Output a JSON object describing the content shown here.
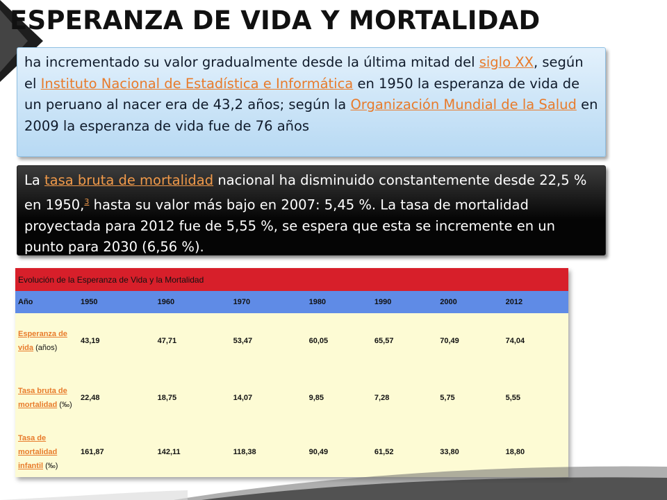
{
  "title": "ESPERANZA DE VIDA Y MORTALIDAD",
  "paragraph1": {
    "t1": "ha incrementado su valor gradualmente desde la última mitad del ",
    "link1": "siglo XX",
    "t2": ", según el ",
    "link2": "Instituto Nacional de Estadística e Informática",
    "t3": " en 1950 la esperanza de vida de un peruano al nacer era de 43,2 años; según la ",
    "link3": "Organización Mundial de la Salud",
    "t4": " en 2009 la esperanza de vida fue de 76 años"
  },
  "paragraph2": {
    "t1": "La ",
    "link1": "tasa bruta de mortalidad",
    "t2": " nacional ha disminuido constantemente desde 22,5 % en 1950,",
    "ref": "3",
    "t3": " hasta su valor más bajo en 2007: 5,45 %. La tasa de mortalidad proyectada para 2012 fue de 5,55 %, se espera que esta se incremente en un punto para 2030 (6,56 %)."
  },
  "table": {
    "caption": "Evolución de la Esperanza de Vida y la Mortalidad",
    "header": [
      "Año",
      "1950",
      "1960",
      "1970",
      "1980",
      "1990",
      "2000",
      "2012"
    ],
    "rows": [
      {
        "label_link": "Esperanza de vida",
        "label_unit": " (años)",
        "values": [
          "43,19",
          "47,71",
          "53,47",
          "60,05",
          "65,57",
          "70,49",
          "74,04"
        ]
      },
      {
        "label_link": "Tasa bruta de mortalidad",
        "label_unit": " (‰)",
        "values": [
          "22,48",
          "18,75",
          "14,07",
          "9,85",
          "7,28",
          "5,75",
          "5,55"
        ]
      },
      {
        "label_link": "Tasa de mortalidad infantil",
        "label_unit": " (‰)",
        "values": [
          "161,87",
          "142,11",
          "118,38",
          "90,49",
          "61,52",
          "33,80",
          "18,80"
        ]
      }
    ]
  },
  "colors": {
    "caption_bg": "#d71f2a",
    "header_bg": "#5f8be6",
    "data_bg": "#fdfbd4",
    "link": "#e87b2b"
  }
}
